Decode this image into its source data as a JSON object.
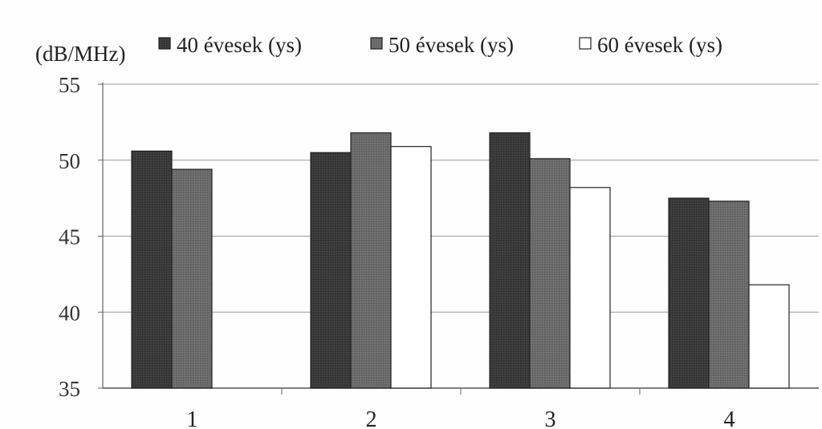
{
  "chart_data": {
    "type": "bar",
    "ylabel": "(dB/MHz)",
    "categories": [
      "1",
      "2",
      "3",
      "4"
    ],
    "ylim": [
      35,
      55
    ],
    "yticks": [
      35,
      40,
      45,
      50,
      55
    ],
    "grid": true,
    "legend_position": "top",
    "series": [
      {
        "name": "40 évesek (ys)",
        "color": "#3a3a3a",
        "values": [
          50.6,
          50.5,
          51.8,
          47.5
        ]
      },
      {
        "name": "50 évesek (ys)",
        "color": "#6b6b6b",
        "values": [
          49.4,
          51.8,
          50.1,
          47.3
        ]
      },
      {
        "name": "60 évesek (ys)",
        "color": "#ffffff",
        "values": [
          null,
          50.9,
          48.2,
          41.8
        ]
      }
    ]
  }
}
